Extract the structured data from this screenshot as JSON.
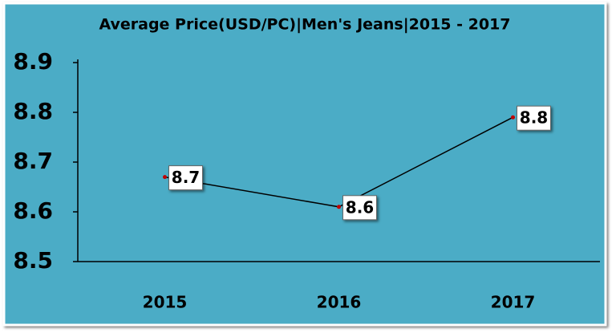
{
  "chart_data": {
    "type": "line",
    "title": "Average Price(USD/PC)|Men's Jeans|2015 - 2017",
    "categories": [
      "2015",
      "2016",
      "2017"
    ],
    "values": [
      8.67,
      8.61,
      8.79
    ],
    "value_labels": [
      "8.7",
      "8.6",
      "8.8"
    ],
    "color": "#000000",
    "marker_color": "#c00000",
    "ylim": [
      8.5,
      8.9
    ],
    "yticks": [
      8.5,
      8.6,
      8.7,
      8.8,
      8.9
    ],
    "grid": false
  }
}
